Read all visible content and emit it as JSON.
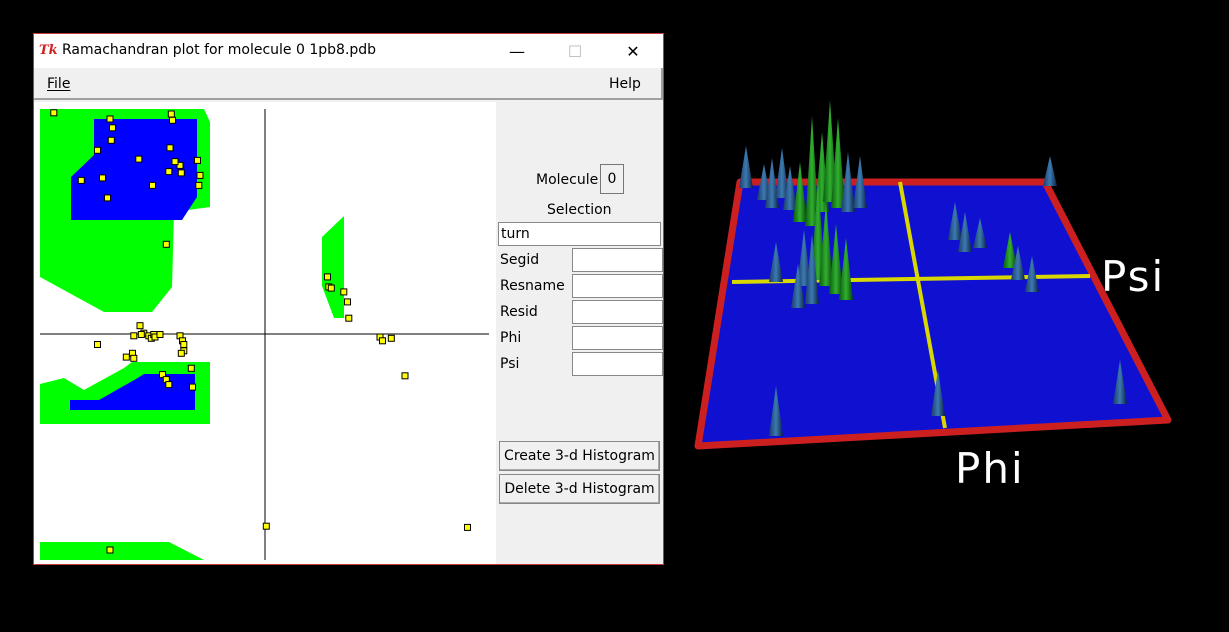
{
  "window": {
    "title": "Ramachandran plot for molecule 0 1pb8.pdb",
    "icon": "Tk"
  },
  "menubar": {
    "file": "File",
    "help": "Help"
  },
  "panel": {
    "molecule_label": "Molecule",
    "molecule_value": "0",
    "selection_label": "Selection",
    "selection_value": "turn",
    "fields": [
      "Segid",
      "Resname",
      "Resid",
      "Phi",
      "Psi"
    ],
    "create_button": "Create 3-d Histogram",
    "delete_button": "Delete 3-d Histogram"
  },
  "view3d": {
    "phi_label": "Phi",
    "psi_label": "Psi"
  },
  "colors": {
    "allowed": "#00ff00",
    "core": "#0000ff",
    "point": "#ffff00",
    "frame": "#cc2020",
    "axes3d": "#d8d800"
  },
  "chart_data": {
    "type": "scatter",
    "xlabel": "",
    "ylabel": "",
    "xlim": [
      -180,
      180
    ],
    "ylim": [
      -180,
      180
    ],
    "points": [
      [
        -169,
        177
      ],
      [
        -124,
        172
      ],
      [
        -75,
        176
      ],
      [
        -122,
        165
      ],
      [
        -123,
        155
      ],
      [
        -74,
        171
      ],
      [
        -134,
        147
      ],
      [
        -76,
        149
      ],
      [
        -68,
        135
      ],
      [
        -67,
        129
      ],
      [
        -72,
        138
      ],
      [
        -54,
        139
      ],
      [
        -101,
        140
      ],
      [
        -77,
        130
      ],
      [
        -52,
        127
      ],
      [
        -147,
        123
      ],
      [
        -130,
        125
      ],
      [
        -53,
        119
      ],
      [
        -90,
        119
      ],
      [
        -126,
        109
      ],
      [
        -79,
        72
      ],
      [
        50,
        46
      ],
      [
        51,
        38
      ],
      [
        53,
        37
      ],
      [
        63,
        34
      ],
      [
        66,
        26
      ],
      [
        67,
        13
      ],
      [
        -100,
        7
      ],
      [
        -97,
        1
      ],
      [
        -93,
        -1
      ],
      [
        -99,
        0
      ],
      [
        -91,
        -3
      ],
      [
        -89,
        0
      ],
      [
        -88,
        -2
      ],
      [
        -84,
        0
      ],
      [
        -105,
        -1
      ],
      [
        -68,
        -1
      ],
      [
        -66,
        -5
      ],
      [
        -65,
        -8
      ],
      [
        -134,
        -8
      ],
      [
        -106,
        -15
      ],
      [
        -105,
        -19
      ],
      [
        -111,
        -18
      ],
      [
        -65,
        -13
      ],
      [
        -67,
        -15
      ],
      [
        -59,
        -27
      ],
      [
        -82,
        -32
      ],
      [
        -79,
        -36
      ],
      [
        -77,
        -40
      ],
      [
        -58,
        -42
      ],
      [
        92,
        -2
      ],
      [
        94,
        -5
      ],
      [
        101,
        -3
      ],
      [
        112,
        -33
      ],
      [
        1,
        -153
      ],
      [
        162,
        -154
      ],
      [
        -124,
        -172
      ]
    ]
  }
}
